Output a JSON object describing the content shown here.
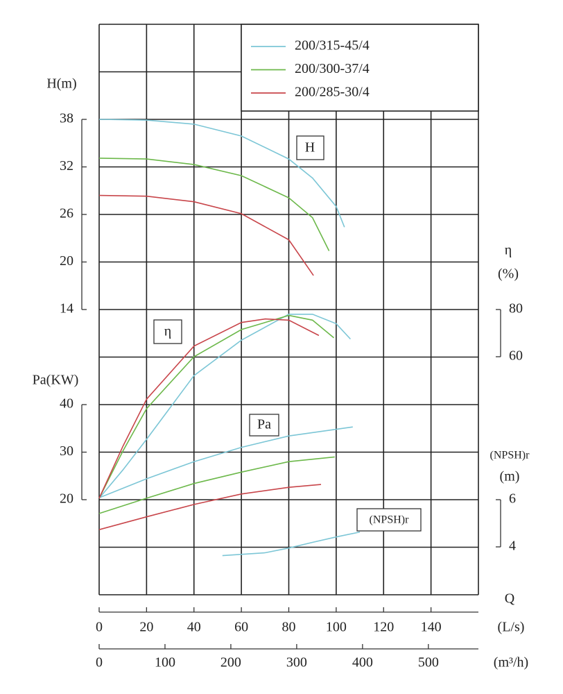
{
  "chart_data": {
    "type": "line",
    "xlabel": "Q",
    "xunit": "(L/s)",
    "xlim": [
      0,
      160
    ],
    "xticks": [
      0,
      20,
      40,
      60,
      80,
      100,
      120,
      140
    ],
    "x2unit": "(m³/h)",
    "x2lim": [
      0,
      576
    ],
    "x2ticks": [
      0,
      100,
      200,
      300,
      400,
      500
    ],
    "axes": [
      {
        "label": "H(m)",
        "ylim": [
          14,
          38
        ],
        "yticks": [
          14,
          20,
          26,
          32,
          38
        ],
        "side": "left"
      },
      {
        "label": "η",
        "unit": "(%)",
        "ylim": [
          60,
          80
        ],
        "yticks": [
          60,
          80
        ],
        "side": "right"
      },
      {
        "label": "Pa(KW)",
        "ylim": [
          20,
          40
        ],
        "yticks": [
          20,
          30,
          40
        ],
        "side": "left"
      },
      {
        "label": "(NPSH)r",
        "unit": "(m)",
        "ylim": [
          4,
          6
        ],
        "yticks": [
          4,
          6
        ],
        "side": "right"
      }
    ],
    "annotations": [
      "H",
      "η",
      "Pa",
      "(NPSH)r"
    ],
    "series": [
      {
        "name": "200/315-45/4",
        "color": "#7cc6d6",
        "curves": [
          {
            "axis": 0,
            "x": [
              0,
              20,
              40,
              60,
              80,
              90,
              100,
              103.5
            ],
            "values": [
              38,
              37.9,
              37.4,
              35.9,
              33,
              30.6,
              27,
              24.4
            ]
          },
          {
            "axis": 1,
            "x": [
              0,
              10,
              20,
              40,
              60,
              80,
              90,
              100,
              106
            ],
            "values": [
              0,
              12,
              25,
              52,
              67,
              78,
              78,
              74,
              67.5
            ]
          },
          {
            "axis": 2,
            "x": [
              0,
              20,
              40,
              60,
              80,
              107
            ],
            "values": [
              20.4,
              24.4,
              28,
              31,
              33.4,
              35.3
            ]
          },
          {
            "axis": 3,
            "x": [
              52,
              70,
              80,
              90,
              100,
              110
            ],
            "values": [
              3.63,
              3.75,
              3.95,
              4.19,
              4.42,
              4.63
            ]
          }
        ]
      },
      {
        "name": "200/300-37/4",
        "color": "#6cb84a",
        "curves": [
          {
            "axis": 0,
            "x": [
              0,
              20,
              40,
              60,
              80,
              90,
              97
            ],
            "values": [
              33.1,
              33,
              32.3,
              30.9,
              28.1,
              25.6,
              21.4
            ]
          },
          {
            "axis": 1,
            "x": [
              0,
              10,
              20,
              40,
              60,
              80,
              90,
              99
            ],
            "values": [
              0,
              20,
              38,
              60,
              71.5,
              77.5,
              75.5,
              68
            ]
          },
          {
            "axis": 2,
            "x": [
              0,
              20,
              40,
              60,
              80,
              99.4
            ],
            "values": [
              17.1,
              20.3,
              23.4,
              25.8,
              28,
              29
            ]
          }
        ]
      },
      {
        "name": "200/285-30/4",
        "color": "#c8454a",
        "curves": [
          {
            "axis": 0,
            "x": [
              0,
              20,
              40,
              60,
              80,
              90.4
            ],
            "values": [
              28.4,
              28.3,
              27.6,
              26.1,
              22.8,
              18.3
            ]
          },
          {
            "axis": 1,
            "x": [
              0,
              10,
              20,
              40,
              60,
              70,
              80,
              92.7
            ],
            "values": [
              0,
              22,
              42,
              64.5,
              74.5,
              76,
              75.5,
              69
            ]
          },
          {
            "axis": 2,
            "x": [
              0,
              20,
              40,
              60,
              80,
              93.6
            ],
            "values": [
              13.7,
              16.4,
              19,
              21.2,
              22.6,
              23.2
            ]
          }
        ]
      }
    ]
  }
}
